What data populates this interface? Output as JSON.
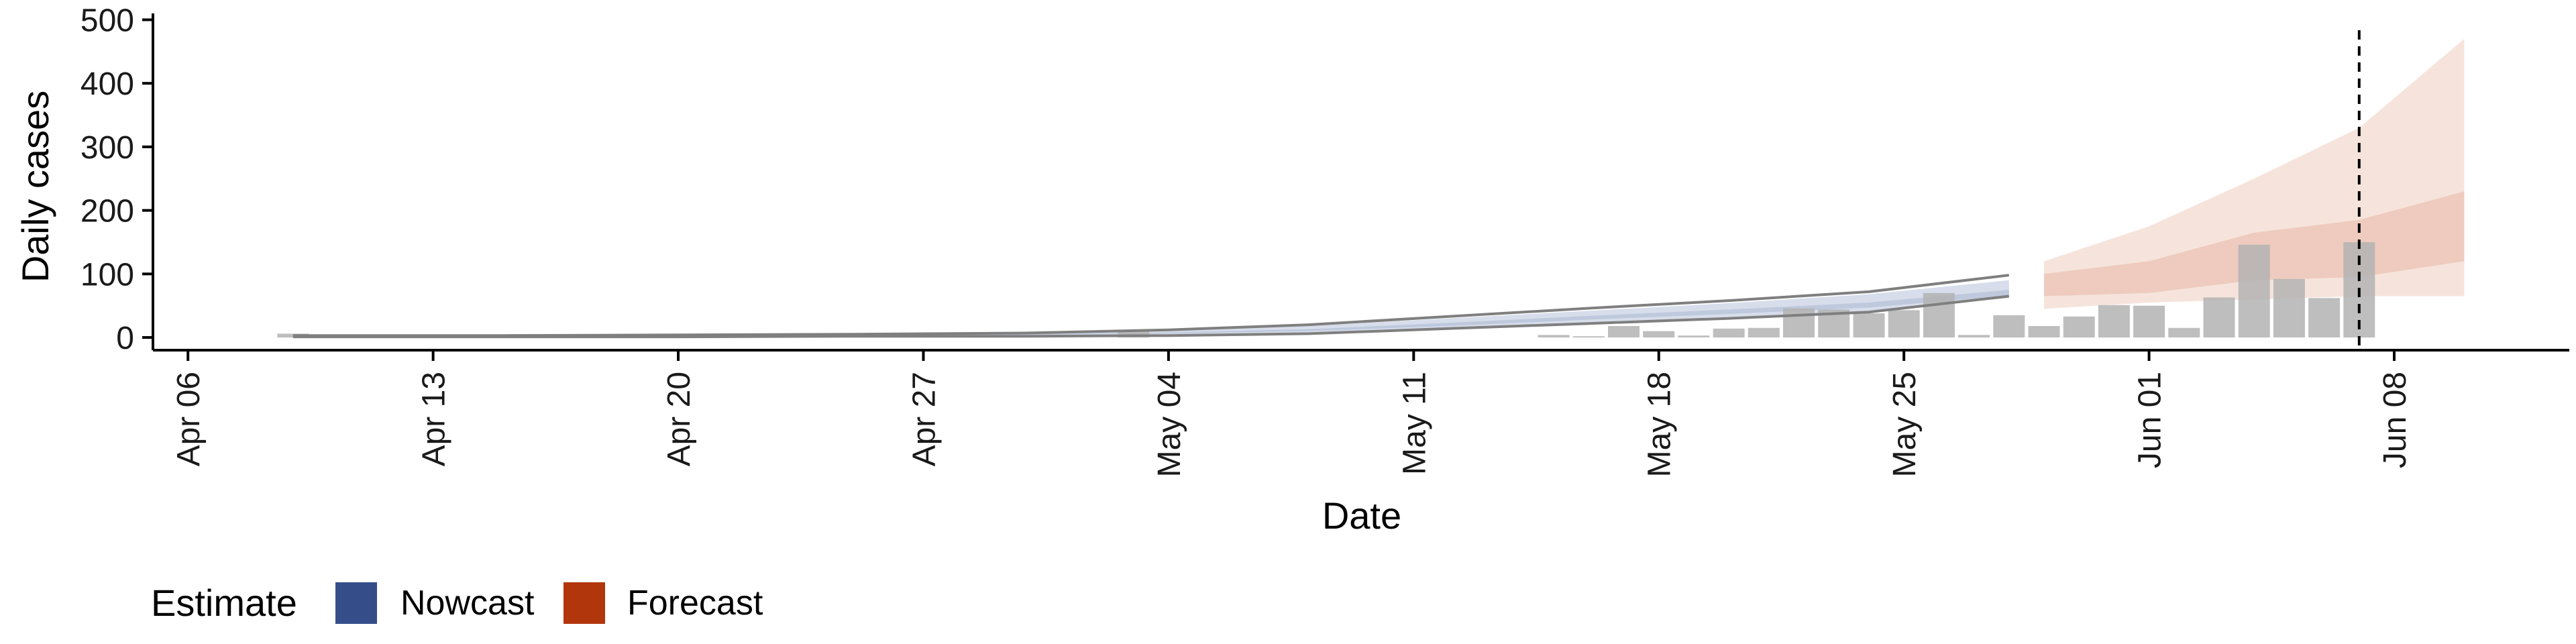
{
  "chart_data": {
    "type": "bar",
    "xlabel": "Date",
    "ylabel": "Daily cases",
    "xlim": [
      "2020-04-05",
      "2020-06-13"
    ],
    "ylim": [
      -20,
      510
    ],
    "x_ticks": [
      "Apr 06",
      "Apr 13",
      "Apr 20",
      "Apr 27",
      "May 04",
      "May 11",
      "May 18",
      "May 25",
      "Jun 01",
      "Jun 08"
    ],
    "x_tick_dates": [
      "2020-04-06",
      "2020-04-13",
      "2020-04-20",
      "2020-04-27",
      "2020-05-04",
      "2020-05-11",
      "2020-05-18",
      "2020-05-25",
      "2020-06-01",
      "2020-06-08"
    ],
    "y_ticks": [
      0,
      100,
      200,
      300,
      400,
      500
    ],
    "grid": false,
    "vline_date": "2020-06-07",
    "bars": {
      "dates": [
        "2020-04-09",
        "2020-04-11",
        "2020-05-03",
        "2020-05-15",
        "2020-05-16",
        "2020-05-17",
        "2020-05-18",
        "2020-05-19",
        "2020-05-20",
        "2020-05-21",
        "2020-05-22",
        "2020-05-23",
        "2020-05-24",
        "2020-05-25",
        "2020-05-26",
        "2020-05-27",
        "2020-05-28",
        "2020-05-29",
        "2020-05-30",
        "2020-05-31",
        "2020-06-01",
        "2020-06-02",
        "2020-06-03",
        "2020-06-04",
        "2020-06-05",
        "2020-06-06",
        "2020-06-07"
      ],
      "values": [
        6,
        4,
        10,
        4,
        2,
        18,
        10,
        3,
        14,
        15,
        46,
        44,
        38,
        43,
        70,
        4,
        35,
        18,
        33,
        51,
        50,
        15,
        63,
        146,
        92,
        62,
        150
      ]
    },
    "series": [
      {
        "name": "Nowcast",
        "dates": [
          "2020-04-09",
          "2020-04-15",
          "2020-04-20",
          "2020-04-25",
          "2020-04-30",
          "2020-05-04",
          "2020-05-08",
          "2020-05-12",
          "2020-05-16",
          "2020-05-20",
          "2020-05-24",
          "2020-05-28"
        ],
        "upper": [
          3,
          3,
          4,
          5,
          7,
          12,
          20,
          33,
          46,
          58,
          72,
          98
        ],
        "outer_upper": [
          3,
          3,
          4,
          5,
          7,
          11,
          18,
          30,
          42,
          54,
          68,
          90
        ],
        "inner_upper": [
          2,
          2,
          3,
          4,
          5,
          8,
          13,
          23,
          34,
          44,
          55,
          75
        ],
        "inner_lower": [
          1,
          1,
          2,
          3,
          4,
          6,
          10,
          18,
          28,
          37,
          47,
          66
        ],
        "outer_lower": [
          1,
          1,
          1,
          2,
          3,
          5,
          8,
          15,
          24,
          32,
          42,
          62
        ],
        "lower": [
          1,
          1,
          1,
          2,
          2,
          3,
          6,
          14,
          22,
          30,
          40,
          65
        ]
      },
      {
        "name": "Forecast",
        "dates": [
          "2020-05-29",
          "2020-06-01",
          "2020-06-04",
          "2020-06-07",
          "2020-06-10"
        ],
        "outer_upper": [
          120,
          175,
          250,
          330,
          470
        ],
        "inner_upper": [
          100,
          120,
          165,
          185,
          230
        ],
        "inner_lower": [
          65,
          70,
          90,
          95,
          120
        ],
        "outer_lower": [
          45,
          55,
          60,
          65,
          65
        ]
      }
    ],
    "legend": {
      "title": "Estimate",
      "placement": "bottom-left",
      "items": [
        {
          "label": "Nowcast",
          "color": "#354e8a"
        },
        {
          "label": "Forecast",
          "color": "#b2360c"
        }
      ]
    },
    "colors": {
      "bar": "#b3b3b3",
      "nowcast_band": "#bcc6dc",
      "forecast_outer": "#f6e4dc",
      "forecast_inner": "#ecc7b8",
      "line": "#7f7f7f",
      "vline": "#000000"
    }
  }
}
